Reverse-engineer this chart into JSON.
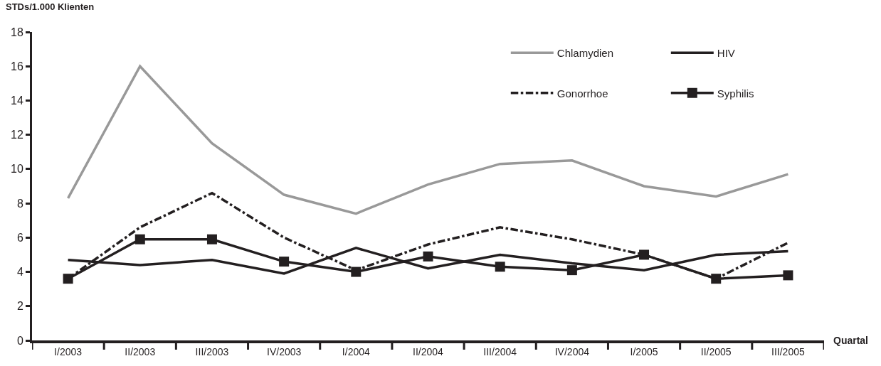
{
  "chart_data": {
    "type": "line",
    "xlabel": "Quartal",
    "ylabel": "STDs/1.000 Klienten",
    "categories": [
      "I/2003",
      "II/2003",
      "III/2003",
      "IV/2003",
      "I/2004",
      "II/2004",
      "III/2004",
      "IV/2004",
      "I/2005",
      "II/2005",
      "III/2005"
    ],
    "series": [
      {
        "name": "Chlamydien",
        "color": "#999999",
        "marker": "none",
        "line_style": "solid",
        "values": [
          8.3,
          16.0,
          11.5,
          8.5,
          7.4,
          9.1,
          10.3,
          10.5,
          9.0,
          8.4,
          9.7
        ]
      },
      {
        "name": "HIV",
        "color": "#231f20",
        "marker": "none",
        "line_style": "solid",
        "values": [
          4.7,
          4.4,
          4.7,
          3.9,
          5.4,
          4.2,
          5.0,
          4.5,
          4.1,
          5.0,
          5.2
        ]
      },
      {
        "name": "Gonorrhoe",
        "color": "#231f20",
        "marker": "none",
        "line_style": "dashdot",
        "values": [
          3.6,
          6.6,
          8.6,
          6.0,
          4.1,
          5.6,
          6.6,
          5.9,
          5.0,
          3.6,
          5.7
        ]
      },
      {
        "name": "Syphilis",
        "color": "#231f20",
        "marker": "square",
        "line_style": "solid",
        "values": [
          3.6,
          5.9,
          5.9,
          4.6,
          4.0,
          4.9,
          4.3,
          4.1,
          5.0,
          3.6,
          3.8
        ]
      }
    ],
    "ylim": [
      0,
      18
    ],
    "yticks": [
      0,
      2,
      4,
      6,
      8,
      10,
      12,
      14,
      16,
      18
    ],
    "grid": false,
    "legend": "top right"
  }
}
